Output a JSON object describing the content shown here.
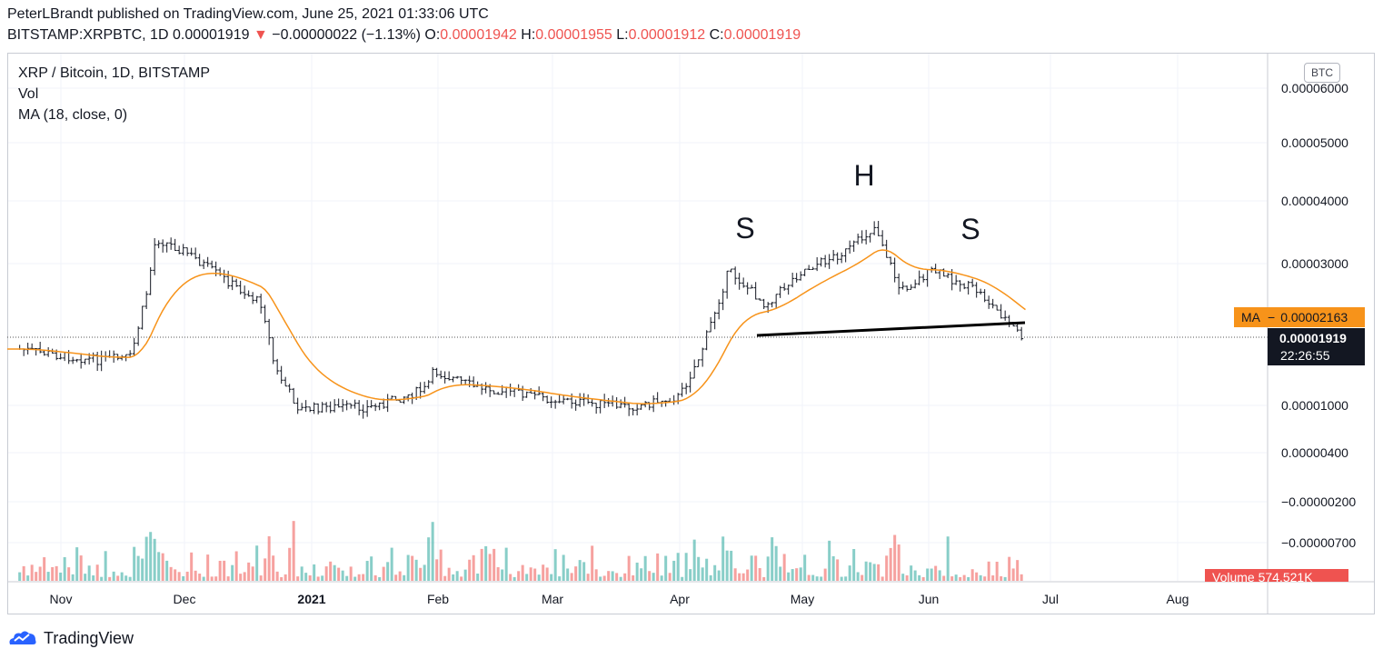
{
  "header": {
    "line1": "PeterLBrandt published on TradingView.com, June 25, 2021 01:33:06 UTC",
    "symbol": "BITSTAMP:XRPBTC, 1D",
    "last": "0.00001919",
    "change": "−0.00000022 (−1.13%)",
    "o_label": "O:",
    "o_value": "0.00001942",
    "h_label": "H:",
    "h_value": "0.00001955",
    "l_label": "L:",
    "l_value": "0.00001912",
    "c_label": "C:",
    "c_value": "0.00001919"
  },
  "legend": {
    "title": "XRP / Bitcoin, 1D, BITSTAMP",
    "vol": "Vol",
    "ma": "MA (18, close, 0)"
  },
  "scale_badge": "BTC",
  "brand": "TradingView",
  "colors": {
    "up": "#26a69a",
    "down": "#ef5350",
    "ma": "#f7931a",
    "price": "#131722"
  },
  "chart_data": {
    "type": "ohlc",
    "price_axis_ticks": [
      "0.00006000",
      "0.00005000",
      "0.00004000",
      "0.00003000",
      "0.00001000",
      "0.00000400",
      "−0.00000200",
      "−0.00000700"
    ],
    "time_axis_ticks": [
      "Nov",
      "Dec",
      "2021",
      "Feb",
      "Mar",
      "Apr",
      "May",
      "Jun",
      "Jul",
      "Aug"
    ],
    "price_label": {
      "value": "0.00001919",
      "countdown": "22:26:55"
    },
    "ma_label": {
      "name": "MA",
      "value": "0.00002163"
    },
    "volume_label": "Volume  574.521K",
    "annotations": [
      "S",
      "H",
      "S"
    ],
    "close_series_btc": {
      "dates": [
        "2020-10-22",
        "2020-11-01",
        "2020-11-10",
        "2020-11-18",
        "2020-11-22",
        "2020-11-24",
        "2020-12-01",
        "2020-12-10",
        "2020-12-20",
        "2020-12-23",
        "2020-12-29",
        "2021-01-05",
        "2021-01-15",
        "2021-01-29",
        "2021-01-31",
        "2021-02-10",
        "2021-02-20",
        "2021-03-01",
        "2021-03-20",
        "2021-04-01",
        "2021-04-06",
        "2021-04-13",
        "2021-04-22",
        "2021-05-01",
        "2021-05-12",
        "2021-05-19",
        "2021-05-25",
        "2021-06-02",
        "2021-06-13",
        "2021-06-20",
        "2021-06-24"
      ],
      "close": [
        1.76e-05,
        1.67e-05,
        1.61e-05,
        1.65e-05,
        2.62e-05,
        3.4e-05,
        3.2e-05,
        2.8e-05,
        2.4e-05,
        1.5e-05,
        9.5e-06,
        9.8e-06,
        9.7e-06,
        1.22e-05,
        1.46e-05,
        1.25e-05,
        1.18e-05,
        1.08e-05,
        9.8e-06,
        1.12e-05,
        1.68e-05,
        2.9e-05,
        2.4e-05,
        2.9e-05,
        3.2e-05,
        3.6e-05,
        2.6e-05,
        2.9e-05,
        2.6e-05,
        2.18e-05,
        1.919e-05
      ]
    }
  }
}
